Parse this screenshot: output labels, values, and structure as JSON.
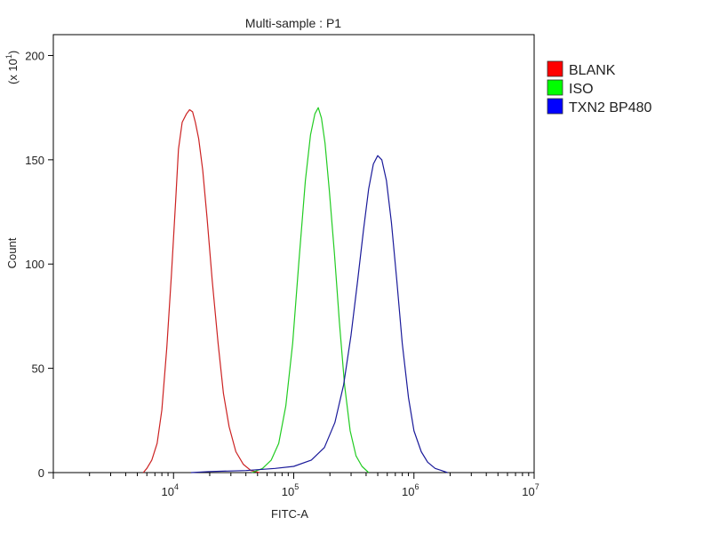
{
  "chart_data": {
    "type": "line",
    "title": "Multi-sample : P1",
    "xlabel": "FITC-A",
    "ylabel": "Count",
    "y_multiplier_label": "(x 10",
    "y_multiplier_exp": "1",
    "x_scale": "log",
    "xlim": [
      1000,
      10000000
    ],
    "ylim": [
      0,
      210
    ],
    "x_tick_labels": [
      {
        "base": "10",
        "exp": "4",
        "value": 10000
      },
      {
        "base": "10",
        "exp": "5",
        "value": 100000
      },
      {
        "base": "10",
        "exp": "6",
        "value": 1000000
      },
      {
        "base": "10",
        "exp": "7",
        "value": 10000000
      }
    ],
    "y_ticks": [
      0,
      50,
      100,
      150,
      200
    ],
    "legend_position": "top-right",
    "series": [
      {
        "name": "BLANK",
        "color": "#cc2222",
        "legend_color": "#ff0000",
        "points": [
          [
            5600,
            0
          ],
          [
            6000,
            2
          ],
          [
            6600,
            6
          ],
          [
            7300,
            14
          ],
          [
            8000,
            30
          ],
          [
            8800,
            60
          ],
          [
            9600,
            95
          ],
          [
            10400,
            130
          ],
          [
            11000,
            155
          ],
          [
            11800,
            168
          ],
          [
            12800,
            172
          ],
          [
            13600,
            174
          ],
          [
            14400,
            173
          ],
          [
            15200,
            168
          ],
          [
            16200,
            160
          ],
          [
            17500,
            145
          ],
          [
            19000,
            122
          ],
          [
            21000,
            92
          ],
          [
            23500,
            62
          ],
          [
            26000,
            38
          ],
          [
            29000,
            22
          ],
          [
            33000,
            10
          ],
          [
            38000,
            4
          ],
          [
            44000,
            1
          ],
          [
            52000,
            0
          ]
        ]
      },
      {
        "name": "ISO",
        "color": "#22cc22",
        "legend_color": "#00ff00",
        "points": [
          [
            45000,
            0
          ],
          [
            55000,
            2
          ],
          [
            65000,
            6
          ],
          [
            75000,
            14
          ],
          [
            86000,
            32
          ],
          [
            98000,
            62
          ],
          [
            110000,
            100
          ],
          [
            125000,
            140
          ],
          [
            138000,
            162
          ],
          [
            150000,
            172
          ],
          [
            160000,
            175
          ],
          [
            170000,
            170
          ],
          [
            182000,
            158
          ],
          [
            198000,
            135
          ],
          [
            218000,
            105
          ],
          [
            240000,
            72
          ],
          [
            265000,
            42
          ],
          [
            295000,
            20
          ],
          [
            330000,
            8
          ],
          [
            370000,
            3
          ],
          [
            420000,
            0
          ]
        ]
      },
      {
        "name": "TXN2 BP480",
        "color": "#1a1a9a",
        "legend_color": "#0000ff",
        "points": [
          [
            14000,
            0
          ],
          [
            20000,
            0.5
          ],
          [
            40000,
            1
          ],
          [
            70000,
            2
          ],
          [
            100000,
            3
          ],
          [
            140000,
            6
          ],
          [
            180000,
            12
          ],
          [
            220000,
            24
          ],
          [
            260000,
            42
          ],
          [
            300000,
            66
          ],
          [
            340000,
            92
          ],
          [
            380000,
            116
          ],
          [
            420000,
            136
          ],
          [
            460000,
            148
          ],
          [
            500000,
            152
          ],
          [
            540000,
            150
          ],
          [
            590000,
            140
          ],
          [
            650000,
            120
          ],
          [
            720000,
            92
          ],
          [
            800000,
            62
          ],
          [
            900000,
            36
          ],
          [
            1000000,
            20
          ],
          [
            1150000,
            10
          ],
          [
            1300000,
            5
          ],
          [
            1500000,
            2
          ],
          [
            1700000,
            1
          ],
          [
            1900000,
            0
          ]
        ]
      }
    ]
  }
}
